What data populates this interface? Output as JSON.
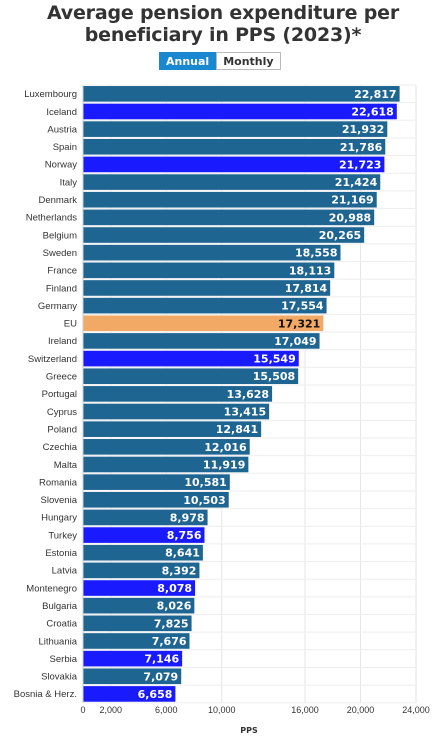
{
  "title": "Average pension expenditure per beneficiary in PPS (2023)*",
  "toggle": {
    "annual_label": "Annual",
    "monthly_label": "Monthly",
    "selected": "Annual"
  },
  "colors": {
    "eu_member": "#1f6592",
    "non_eu": "#1a1aff",
    "eu_average": "#f3a966"
  },
  "chart_data": {
    "type": "bar",
    "orientation": "horizontal",
    "title": "Average pension expenditure per beneficiary in PPS (2023)*",
    "xlabel": "PPS",
    "ylabel": "",
    "xlim": [
      0,
      24000
    ],
    "xticks": [
      0,
      2000,
      6000,
      10000,
      16000,
      20000,
      24000
    ],
    "xtick_labels": [
      "0",
      "2,000",
      "6,000",
      "10,000",
      "16,000",
      "20,000",
      "24,000"
    ],
    "grid": true,
    "categories": [
      "Luxembourg",
      "Iceland",
      "Austria",
      "Spain",
      "Norway",
      "Italy",
      "Denmark",
      "Netherlands",
      "Belgium",
      "Sweden",
      "France",
      "Finland",
      "Germany",
      "EU",
      "Ireland",
      "Switzerland",
      "Greece",
      "Portugal",
      "Cyprus",
      "Poland",
      "Czechia",
      "Malta",
      "Romania",
      "Slovenia",
      "Hungary",
      "Turkey",
      "Estonia",
      "Latvia",
      "Montenegro",
      "Bulgaria",
      "Croatia",
      "Lithuania",
      "Serbia",
      "Slovakia",
      "Bosnia & Herz."
    ],
    "values": [
      22817,
      22618,
      21932,
      21786,
      21723,
      21424,
      21169,
      20988,
      20265,
      18558,
      18113,
      17814,
      17554,
      17321,
      17049,
      15549,
      15508,
      13628,
      13415,
      12841,
      12016,
      11919,
      10581,
      10503,
      8978,
      8756,
      8641,
      8392,
      8078,
      8026,
      7825,
      7676,
      7146,
      7079,
      6658
    ],
    "value_labels": [
      "22,817",
      "22,618",
      "21,932",
      "21,786",
      "21,723",
      "21,424",
      "21,169",
      "20,988",
      "20,265",
      "18,558",
      "18,113",
      "17,814",
      "17,554",
      "17,321",
      "17,049",
      "15,549",
      "15,508",
      "13,628",
      "13,415",
      "12,841",
      "12,016",
      "11,919",
      "10,581",
      "10,503",
      "8,978",
      "8,756",
      "8,641",
      "8,392",
      "8,078",
      "8,026",
      "7,825",
      "7,676",
      "7,146",
      "7,079",
      "6,658"
    ],
    "groups": [
      "eu_member",
      "non_eu",
      "eu_member",
      "eu_member",
      "non_eu",
      "eu_member",
      "eu_member",
      "eu_member",
      "eu_member",
      "eu_member",
      "eu_member",
      "eu_member",
      "eu_member",
      "eu_average",
      "eu_member",
      "non_eu",
      "eu_member",
      "eu_member",
      "eu_member",
      "eu_member",
      "eu_member",
      "eu_member",
      "eu_member",
      "eu_member",
      "eu_member",
      "non_eu",
      "eu_member",
      "eu_member",
      "non_eu",
      "eu_member",
      "eu_member",
      "eu_member",
      "non_eu",
      "eu_member",
      "non_eu"
    ]
  }
}
